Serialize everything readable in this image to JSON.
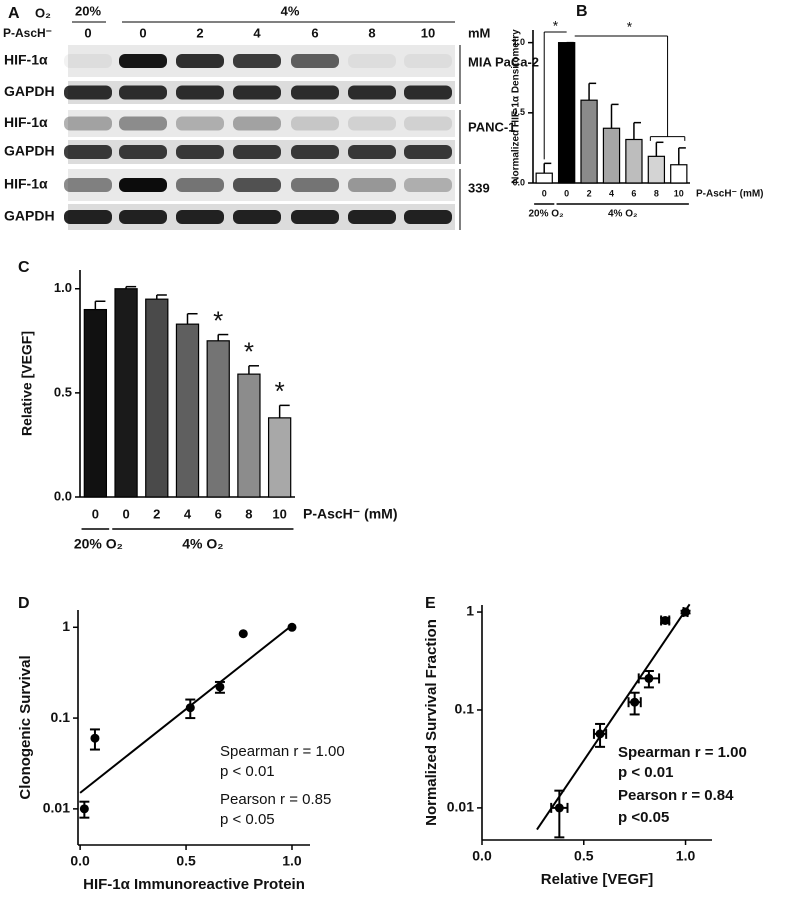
{
  "blot": {
    "panel": "A",
    "o2_label": "O₂",
    "o2_levels": [
      "20%",
      "4%"
    ],
    "treatment_label": "P-AscH⁻",
    "lanes": [
      "0",
      "0",
      "2",
      "4",
      "6",
      "8",
      "10"
    ],
    "unit": "mM",
    "rows": [
      "HIF-1α",
      "GAPDH",
      "HIF-1α",
      "GAPDH",
      "HIF-1α",
      "GAPDH"
    ],
    "cell_lines": [
      "MIA PaCa-2",
      "PANC-1",
      "339"
    ]
  },
  "chart_data": [
    {
      "type": "bar",
      "panel": "B",
      "ylabel": "Normalized HIF-1α Densitometry",
      "xlabel": "P-AscH⁻ (mM)",
      "categories": [
        "0",
        "0",
        "2",
        "4",
        "6",
        "8",
        "10"
      ],
      "values": [
        0.07,
        1.0,
        0.59,
        0.39,
        0.31,
        0.19,
        0.13
      ],
      "errors": [
        0.07,
        0.0,
        0.12,
        0.17,
        0.12,
        0.1,
        0.12
      ],
      "colors": [
        "#ffffff",
        "#000000",
        "#8a8a8a",
        "#a6a6a6",
        "#bdbdbd",
        "#d4d4d4",
        "#ffffff"
      ],
      "ylim": [
        0,
        1.09
      ],
      "yticks": [
        {
          "value": 0,
          "label": "0.0"
        },
        0.5,
        {
          "value": 1,
          "label": "1.0"
        }
      ],
      "group_labels": [
        "20% O₂",
        "4% O₂"
      ],
      "annotations": [
        "*",
        "*"
      ]
    },
    {
      "type": "bar",
      "panel": "C",
      "ylabel": "Relative [VEGF]",
      "xlabel": "P-AscH⁻ (mM)",
      "categories": [
        "0",
        "0",
        "2",
        "4",
        "6",
        "8",
        "10"
      ],
      "values": [
        0.9,
        1.0,
        0.95,
        0.83,
        0.75,
        0.59,
        0.38
      ],
      "errors": [
        0.04,
        0.01,
        0.02,
        0.05,
        0.03,
        0.04,
        0.06
      ],
      "colors": [
        "#111111",
        "#1a1a1a",
        "#4a4a4a",
        "#5f5f5f",
        "#747474",
        "#8c8c8c",
        "#a8a8a8"
      ],
      "ylim": [
        0,
        1.09
      ],
      "yticks": [
        {
          "value": 0,
          "label": "0.0"
        },
        0.5,
        {
          "value": 1,
          "label": "1.0"
        }
      ],
      "group_labels": [
        "20% O₂",
        "4% O₂"
      ],
      "significance": [
        null,
        null,
        null,
        null,
        "*",
        "*",
        "*"
      ]
    },
    {
      "type": "scatter",
      "panel": "D",
      "ylabel": "Clonogenic Survival",
      "xlabel": "HIF-1α Immunoreactive Protein",
      "log_y": true,
      "x": [
        0.02,
        0.07,
        0.52,
        0.66,
        0.77,
        1.0
      ],
      "y": [
        0.01,
        0.06,
        0.13,
        0.22,
        0.85,
        1.0
      ],
      "yerr": [
        0.002,
        0.015,
        0.03,
        0.03,
        0,
        0
      ],
      "fit": {
        "x": [
          0,
          1.0
        ],
        "y": [
          0.015,
          1.05
        ]
      },
      "xlim": [
        -0.01,
        1.085
      ],
      "ylim": [
        0.004,
        1.55
      ],
      "xticks": [
        {
          "value": 0,
          "label": "0.0"
        },
        0.5,
        {
          "value": 1,
          "label": "1.0"
        }
      ],
      "yticks": [
        0.01,
        0.1,
        1
      ],
      "annotations": [
        "Spearman r = 1.00",
        "p < 0.01",
        "Pearson r = 0.85",
        "p < 0.05"
      ]
    },
    {
      "type": "scatter",
      "panel": "E",
      "ylabel": "Normalized Survival Fraction",
      "xlabel": "Relative [VEGF]",
      "log_y": true,
      "x": [
        0.38,
        0.58,
        0.75,
        0.82,
        0.9,
        1.0
      ],
      "y": [
        0.01,
        0.057,
        0.12,
        0.21,
        0.82,
        1.0
      ],
      "xerr": [
        0.04,
        0.03,
        0.03,
        0.05,
        0.02,
        0.01
      ],
      "yerr": [
        0.005,
        0.015,
        0.03,
        0.04,
        0.05,
        0.03
      ],
      "fit": {
        "x": [
          0.27,
          1.02
        ],
        "y": [
          0.006,
          1.2
        ]
      },
      "xlim": [
        0,
        1.13
      ],
      "ylim": [
        0.0047,
        1.18
      ],
      "xticks": [
        {
          "value": 0,
          "label": "0.0"
        },
        0.5,
        {
          "value": 1,
          "label": "1.0"
        }
      ],
      "yticks": [
        0.01,
        0.1,
        1
      ],
      "annotations": [
        "Spearman r = 1.00",
        "p < 0.01",
        "Pearson r = 0.84",
        "p <0.05"
      ]
    }
  ]
}
